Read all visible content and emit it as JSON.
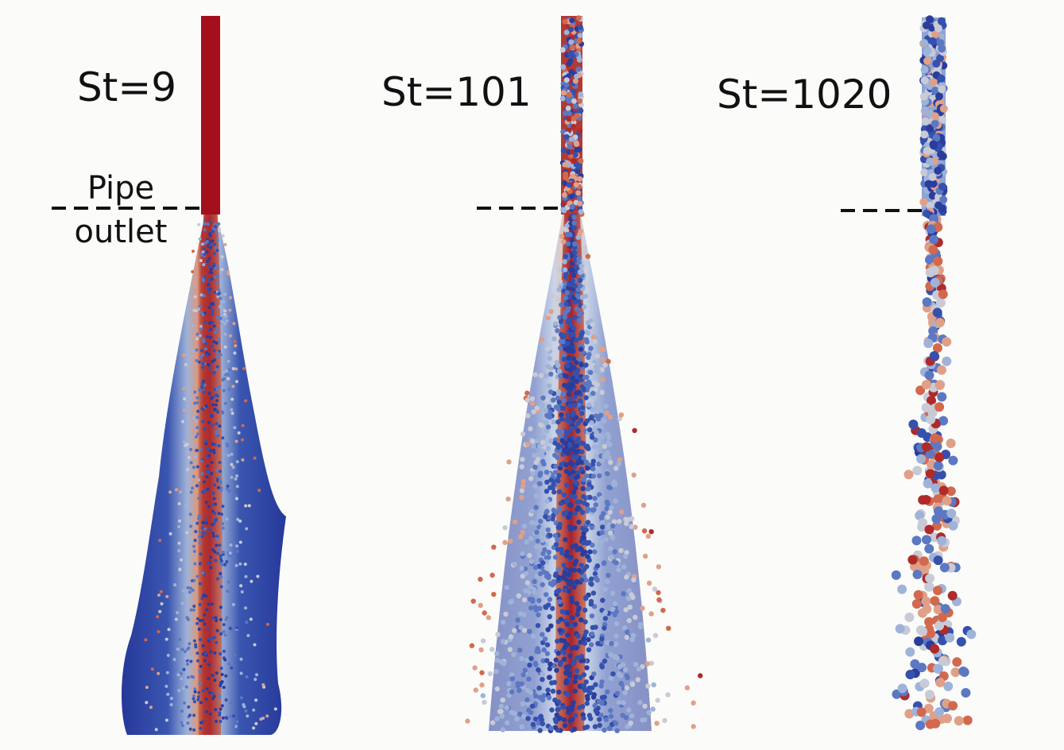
{
  "panels": [
    {
      "label": "St=9"
    },
    {
      "label": "St=101"
    },
    {
      "label": "St=1020"
    }
  ],
  "annotation": {
    "line1": "Pipe",
    "line2": "outlet"
  }
}
